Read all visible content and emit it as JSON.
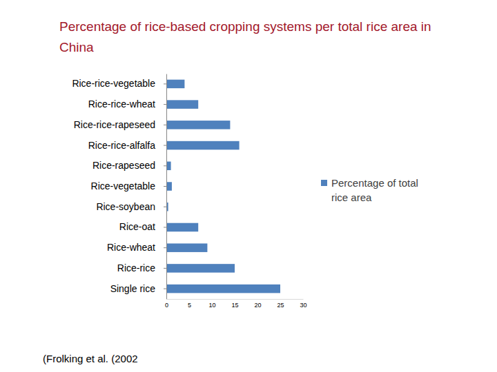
{
  "chart_data": {
    "type": "bar",
    "orientation": "horizontal",
    "title": "Percentage of rice-based cropping systems per total rice area in China",
    "categories": [
      "Rice-rice-vegetable",
      "Rice-rice-wheat",
      "Rice-rice-rapeseed",
      "Rice-rice-alfalfa",
      "Rice-rapeseed",
      "Rice-vegetable",
      "Rice-soybean",
      "Rice-oat",
      "Rice-wheat",
      "Rice-rice",
      "Single rice"
    ],
    "series": [
      {
        "name": "Percentage of total rice area",
        "color": "#4f81bd",
        "values": [
          4,
          7,
          14,
          16,
          1,
          1.2,
          0.4,
          7,
          9,
          15,
          25
        ]
      }
    ],
    "xlim": [
      0,
      30
    ],
    "xticks": [
      0,
      5,
      10,
      15,
      20,
      25,
      30
    ],
    "legend": "right",
    "grid": false,
    "source": "(Frolking et al. (2002"
  }
}
